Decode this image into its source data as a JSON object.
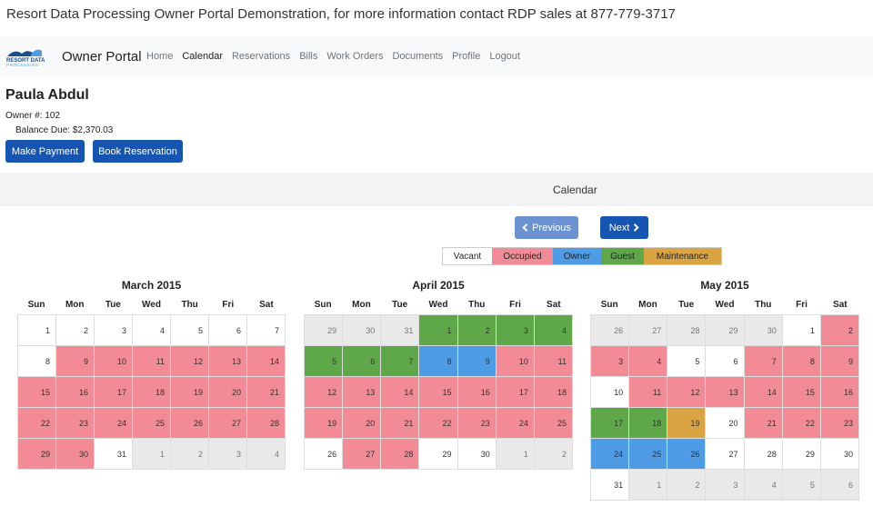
{
  "banner": "Resort Data Processing Owner Portal Demonstration, for more information contact RDP sales at 877-779-3717",
  "logo": {
    "line1": "RESORT DATA",
    "line2": "PROCESSING",
    "colors": [
      "#1a4f8a",
      "#4e9be6"
    ]
  },
  "brand": "Owner Portal",
  "nav": [
    {
      "label": "Home",
      "active": false
    },
    {
      "label": "Calendar",
      "active": true
    },
    {
      "label": "Reservations",
      "active": false
    },
    {
      "label": "Bills",
      "active": false
    },
    {
      "label": "Work Orders",
      "active": false
    },
    {
      "label": "Documents",
      "active": false
    },
    {
      "label": "Profile",
      "active": false
    },
    {
      "label": "Logout",
      "active": false
    }
  ],
  "owner": {
    "name": "Paula Abdul",
    "number": "Owner #: 102",
    "balance": "Balance Due: $2,370.03"
  },
  "buttons": {
    "make_payment": "Make Payment",
    "book_reservation": "Book Reservation"
  },
  "calendar_title": "Calendar",
  "prev_label": "Previous",
  "next_label": "Next",
  "icons": {
    "prev": "chevron-left-icon",
    "next": "chevron-right-icon"
  },
  "legend": {
    "vacant": "Vacant",
    "occupied": "Occupied",
    "owner": "Owner",
    "guest": "Guest",
    "maintenance": "Maintenance"
  },
  "colors": {
    "occupied": "#f28b95",
    "owner": "#4e9be6",
    "guest": "#5fa84a",
    "maintenance": "#d9a441",
    "other": "#e9e9e9",
    "primary": "#1656b2"
  },
  "weekdays": [
    "Sun",
    "Mon",
    "Tue",
    "Wed",
    "Thu",
    "Fri",
    "Sat"
  ],
  "months": [
    {
      "title": "March 2015",
      "weeks": [
        [
          {
            "d": "1",
            "s": "vacant"
          },
          {
            "d": "2",
            "s": "vacant"
          },
          {
            "d": "3",
            "s": "vacant"
          },
          {
            "d": "4",
            "s": "vacant"
          },
          {
            "d": "5",
            "s": "vacant"
          },
          {
            "d": "6",
            "s": "vacant"
          },
          {
            "d": "7",
            "s": "vacant"
          }
        ],
        [
          {
            "d": "8",
            "s": "vacant"
          },
          {
            "d": "9",
            "s": "occupied"
          },
          {
            "d": "10",
            "s": "occupied"
          },
          {
            "d": "11",
            "s": "occupied"
          },
          {
            "d": "12",
            "s": "occupied"
          },
          {
            "d": "13",
            "s": "occupied"
          },
          {
            "d": "14",
            "s": "occupied"
          }
        ],
        [
          {
            "d": "15",
            "s": "occupied"
          },
          {
            "d": "16",
            "s": "occupied"
          },
          {
            "d": "17",
            "s": "occupied"
          },
          {
            "d": "18",
            "s": "occupied"
          },
          {
            "d": "19",
            "s": "occupied"
          },
          {
            "d": "20",
            "s": "occupied"
          },
          {
            "d": "21",
            "s": "occupied"
          }
        ],
        [
          {
            "d": "22",
            "s": "occupied"
          },
          {
            "d": "23",
            "s": "occupied"
          },
          {
            "d": "24",
            "s": "occupied"
          },
          {
            "d": "25",
            "s": "occupied"
          },
          {
            "d": "26",
            "s": "occupied"
          },
          {
            "d": "27",
            "s": "occupied"
          },
          {
            "d": "28",
            "s": "occupied"
          }
        ],
        [
          {
            "d": "29",
            "s": "occupied"
          },
          {
            "d": "30",
            "s": "occupied"
          },
          {
            "d": "31",
            "s": "vacant"
          },
          {
            "d": "1",
            "s": "other"
          },
          {
            "d": "2",
            "s": "other"
          },
          {
            "d": "3",
            "s": "other"
          },
          {
            "d": "4",
            "s": "other"
          }
        ]
      ]
    },
    {
      "title": "April 2015",
      "weeks": [
        [
          {
            "d": "29",
            "s": "other"
          },
          {
            "d": "30",
            "s": "other"
          },
          {
            "d": "31",
            "s": "other"
          },
          {
            "d": "1",
            "s": "guest"
          },
          {
            "d": "2",
            "s": "guest"
          },
          {
            "d": "3",
            "s": "guest"
          },
          {
            "d": "4",
            "s": "guest"
          }
        ],
        [
          {
            "d": "5",
            "s": "guest"
          },
          {
            "d": "6",
            "s": "guest"
          },
          {
            "d": "7",
            "s": "guest"
          },
          {
            "d": "8",
            "s": "owner"
          },
          {
            "d": "9",
            "s": "owner"
          },
          {
            "d": "10",
            "s": "occupied"
          },
          {
            "d": "11",
            "s": "occupied"
          }
        ],
        [
          {
            "d": "12",
            "s": "occupied"
          },
          {
            "d": "13",
            "s": "occupied"
          },
          {
            "d": "14",
            "s": "occupied"
          },
          {
            "d": "15",
            "s": "occupied"
          },
          {
            "d": "16",
            "s": "occupied"
          },
          {
            "d": "17",
            "s": "occupied"
          },
          {
            "d": "18",
            "s": "occupied"
          }
        ],
        [
          {
            "d": "19",
            "s": "occupied"
          },
          {
            "d": "20",
            "s": "occupied"
          },
          {
            "d": "21",
            "s": "occupied"
          },
          {
            "d": "22",
            "s": "occupied"
          },
          {
            "d": "23",
            "s": "occupied"
          },
          {
            "d": "24",
            "s": "occupied"
          },
          {
            "d": "25",
            "s": "occupied"
          }
        ],
        [
          {
            "d": "26",
            "s": "vacant"
          },
          {
            "d": "27",
            "s": "occupied"
          },
          {
            "d": "28",
            "s": "occupied"
          },
          {
            "d": "29",
            "s": "vacant"
          },
          {
            "d": "30",
            "s": "vacant"
          },
          {
            "d": "1",
            "s": "other"
          },
          {
            "d": "2",
            "s": "other"
          }
        ]
      ]
    },
    {
      "title": "May 2015",
      "weeks": [
        [
          {
            "d": "26",
            "s": "other"
          },
          {
            "d": "27",
            "s": "other"
          },
          {
            "d": "28",
            "s": "other"
          },
          {
            "d": "29",
            "s": "other"
          },
          {
            "d": "30",
            "s": "other"
          },
          {
            "d": "1",
            "s": "vacant"
          },
          {
            "d": "2",
            "s": "occupied"
          }
        ],
        [
          {
            "d": "3",
            "s": "occupied"
          },
          {
            "d": "4",
            "s": "occupied"
          },
          {
            "d": "5",
            "s": "vacant"
          },
          {
            "d": "6",
            "s": "vacant"
          },
          {
            "d": "7",
            "s": "occupied"
          },
          {
            "d": "8",
            "s": "occupied"
          },
          {
            "d": "9",
            "s": "occupied"
          }
        ],
        [
          {
            "d": "10",
            "s": "vacant"
          },
          {
            "d": "11",
            "s": "occupied"
          },
          {
            "d": "12",
            "s": "occupied"
          },
          {
            "d": "13",
            "s": "occupied"
          },
          {
            "d": "14",
            "s": "occupied"
          },
          {
            "d": "15",
            "s": "occupied"
          },
          {
            "d": "16",
            "s": "occupied"
          }
        ],
        [
          {
            "d": "17",
            "s": "guest"
          },
          {
            "d": "18",
            "s": "guest"
          },
          {
            "d": "19",
            "s": "maintenance"
          },
          {
            "d": "20",
            "s": "vacant"
          },
          {
            "d": "21",
            "s": "occupied"
          },
          {
            "d": "22",
            "s": "occupied"
          },
          {
            "d": "23",
            "s": "occupied"
          }
        ],
        [
          {
            "d": "24",
            "s": "owner"
          },
          {
            "d": "25",
            "s": "owner"
          },
          {
            "d": "26",
            "s": "owner"
          },
          {
            "d": "27",
            "s": "vacant"
          },
          {
            "d": "28",
            "s": "vacant"
          },
          {
            "d": "29",
            "s": "vacant"
          },
          {
            "d": "30",
            "s": "vacant"
          }
        ],
        [
          {
            "d": "31",
            "s": "vacant"
          },
          {
            "d": "1",
            "s": "other"
          },
          {
            "d": "2",
            "s": "other"
          },
          {
            "d": "3",
            "s": "other"
          },
          {
            "d": "4",
            "s": "other"
          },
          {
            "d": "5",
            "s": "other"
          },
          {
            "d": "6",
            "s": "other"
          }
        ]
      ]
    }
  ]
}
